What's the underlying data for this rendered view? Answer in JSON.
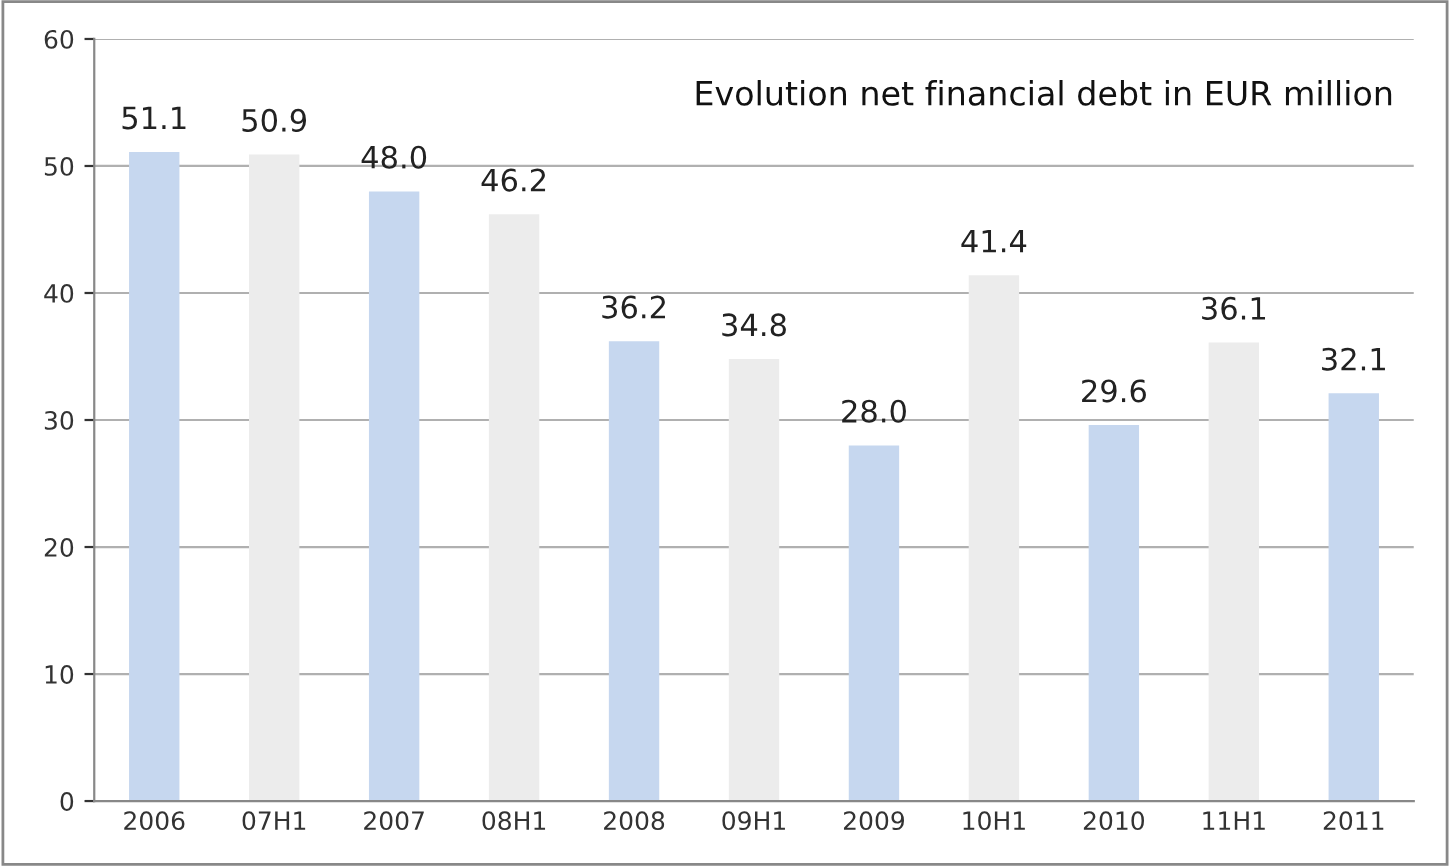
{
  "chart_data": {
    "type": "bar",
    "title": "Evolution net financial debt in EUR million",
    "categories": [
      "2006",
      "07H1",
      "2007",
      "08H1",
      "2008",
      "09H1",
      "2009",
      "10H1",
      "2010",
      "11H1",
      "2011"
    ],
    "values": [
      51.1,
      50.9,
      48.0,
      46.2,
      36.2,
      34.8,
      28.0,
      41.4,
      29.6,
      36.1,
      32.1
    ],
    "value_labels": [
      "51.1",
      "50.9",
      "48.0",
      "46.2",
      "36.2",
      "34.8",
      "28.0",
      "41.4",
      "29.6",
      "36.1",
      "32.1"
    ],
    "colors": [
      "#c6d7ef",
      "#ececec",
      "#c6d7ef",
      "#ececec",
      "#c6d7ef",
      "#ececec",
      "#c6d7ef",
      "#ececec",
      "#c6d7ef",
      "#ececec",
      "#c6d7ef"
    ],
    "ylim": [
      0,
      60
    ],
    "yticks": [
      0,
      10,
      20,
      30,
      40,
      50,
      60
    ],
    "grid": "y",
    "legend": false
  }
}
